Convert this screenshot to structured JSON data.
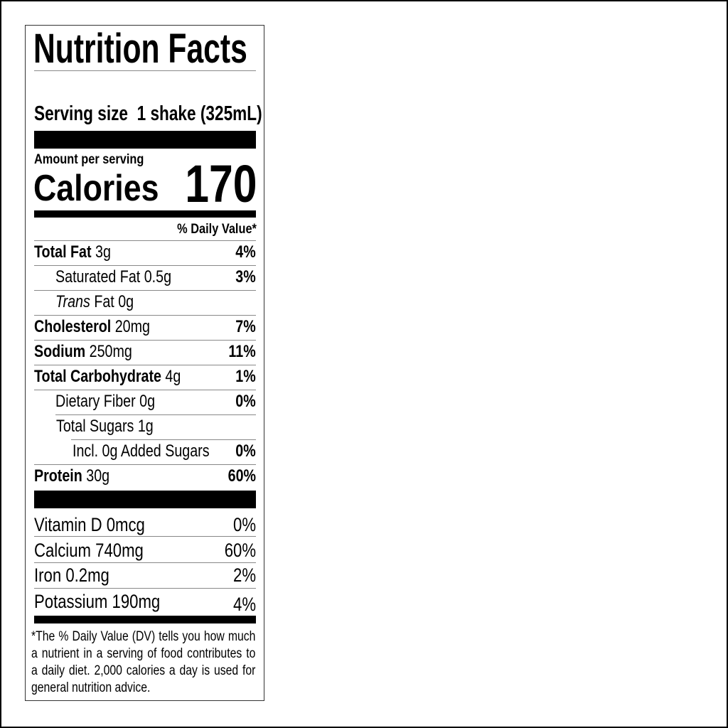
{
  "title": "Nutrition Facts",
  "serving": {
    "label": "Serving size",
    "value": "1 shake (325mL)"
  },
  "amount_per_serving": "Amount per serving",
  "calories": {
    "label": "Calories",
    "value": "170"
  },
  "dv_header": "% Daily Value*",
  "nutrients": [
    {
      "name": "Total Fat",
      "amount": "3g",
      "dv": "4%"
    },
    {
      "name": "Saturated Fat",
      "amount": "0.5g",
      "dv": "3%"
    },
    {
      "name": "Trans",
      "name_rest": "Fat",
      "amount": "0g",
      "dv": ""
    },
    {
      "name": "Cholesterol",
      "amount": "20mg",
      "dv": "7%"
    },
    {
      "name": "Sodium",
      "amount": "250mg",
      "dv": "11%"
    },
    {
      "name": "Total Carbohydrate",
      "amount": "4g",
      "dv": "1%"
    },
    {
      "name": "Dietary Fiber",
      "amount": "0g",
      "dv": "0%"
    },
    {
      "name": "Total Sugars",
      "amount": "1g",
      "dv": ""
    },
    {
      "name": "Incl. 0g Added Sugars",
      "amount": "",
      "dv": "0%"
    },
    {
      "name": "Protein",
      "amount": "30g",
      "dv": "60%"
    }
  ],
  "vitamins": [
    {
      "name": "Vitamin D",
      "amount": "0mcg",
      "dv": "0%"
    },
    {
      "name": "Calcium",
      "amount": "740mg",
      "dv": "60%"
    },
    {
      "name": "Iron",
      "amount": "0.2mg",
      "dv": "2%"
    },
    {
      "name": "Potassium",
      "amount": "190mg",
      "dv": "4%"
    }
  ],
  "footnote": "*The % Daily Value (DV) tells you how much a nutrient in a serving of food contributes to a daily diet. 2,000 calories a day is used for general nutrition advice."
}
